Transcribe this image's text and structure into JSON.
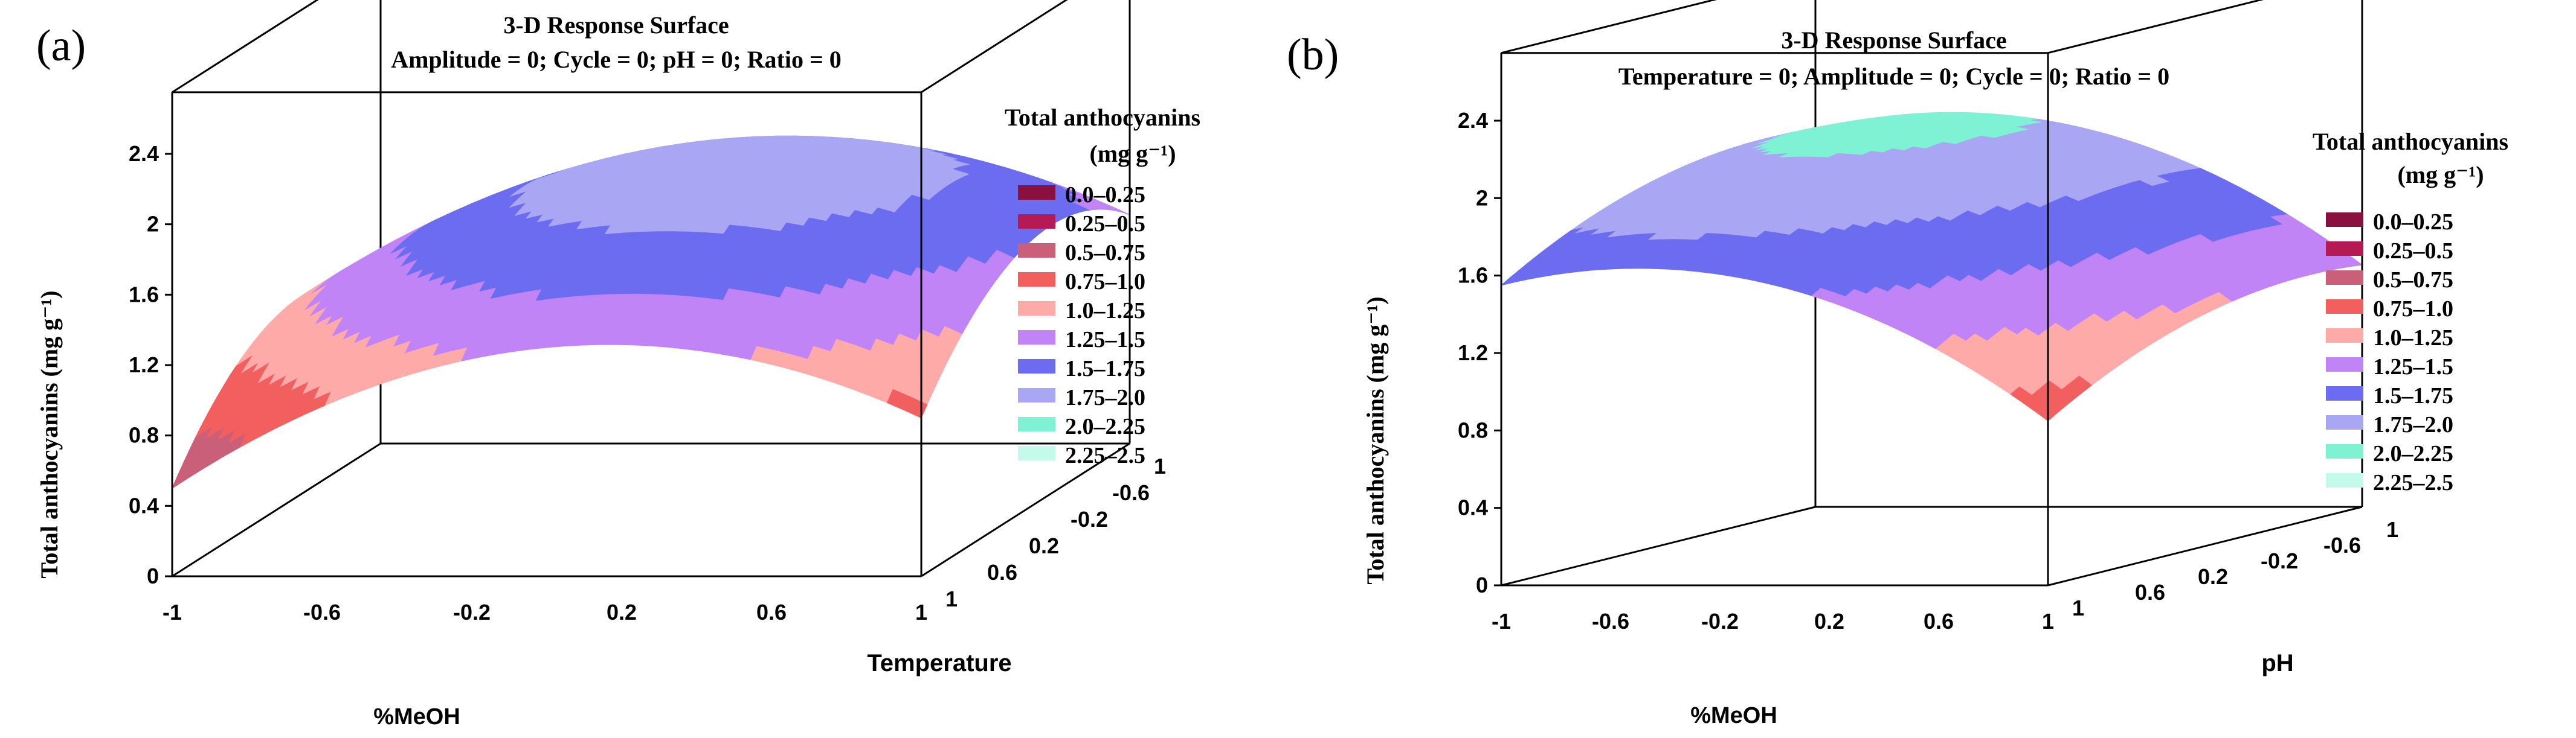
{
  "figure": {
    "panels": [
      {
        "panel_label": "(a)",
        "title": "3-D Response Surface",
        "subtitle": "Amplitude = 0; Cycle = 0; pH = 0; Ratio = 0",
        "legend_title_line1": "Total anthocyanins",
        "legend_title_line2": "(mg g⁻¹)"
      },
      {
        "panel_label": "(b)",
        "title": "3-D Response Surface",
        "subtitle": "Temperature = 0; Amplitude = 0; Cycle = 0; Ratio = 0",
        "legend_title_line1": "Total anthocyanins",
        "legend_title_line2": "(mg g⁻¹)"
      }
    ]
  },
  "chart_data": [
    {
      "type": "surface3d",
      "title": "3-D Response Surface",
      "subtitle": "Amplitude = 0; Cycle = 0; pH = 0; Ratio = 0",
      "xlabel": "%MeOH",
      "ylabel": "Temperature",
      "zlabel": "Total anthocyanins (mg g⁻¹)",
      "x_ticks": [
        "-1",
        "-0.6",
        "-0.2",
        "0.2",
        "0.6",
        "1"
      ],
      "y_ticks": [
        "1",
        "0.6",
        "0.2",
        "-0.2",
        "-0.6",
        "1"
      ],
      "z_ticks": [
        "0",
        "0.4",
        "0.8",
        "1.2",
        "1.6",
        "2",
        "2.4"
      ],
      "xlim": [
        -1,
        1
      ],
      "ylim": [
        -1,
        1
      ],
      "zlim": [
        0,
        2.4
      ],
      "legend": [
        {
          "label": "0.0–0.25",
          "color": "#8a1040"
        },
        {
          "label": "0.25–0.5",
          "color": "#b51a55"
        },
        {
          "label": "0.5–0.75",
          "color": "#c95f78"
        },
        {
          "label": "0.75–1.0",
          "color": "#f25f5f"
        },
        {
          "label": "1.0–1.25",
          "color": "#fdaaa8"
        },
        {
          "label": "1.25–1.5",
          "color": "#c184f7"
        },
        {
          "label": "1.5–1.75",
          "color": "#6c6cf0"
        },
        {
          "label": "1.75–2.0",
          "color": "#a9a6f3"
        },
        {
          "label": "2.0–2.25",
          "color": "#7ff2d4"
        },
        {
          "label": "2.25–2.5",
          "color": "#c4fae9"
        }
      ],
      "model": {
        "c": 1.9,
        "ax": 0.2,
        "bx": -0.6,
        "ay": -0.2,
        "by": -0.4
      }
    },
    {
      "type": "surface3d",
      "title": "3-D Response Surface",
      "subtitle": "Temperature = 0; Amplitude = 0; Cycle = 0; Ratio = 0",
      "xlabel": "%MeOH",
      "ylabel": "pH",
      "zlabel": "Total anthocyanins (mg g⁻¹)",
      "x_ticks": [
        "-1",
        "-0.6",
        "-0.2",
        "0.2",
        "0.6",
        "1"
      ],
      "y_ticks": [
        "1",
        "0.6",
        "0.2",
        "-0.2",
        "-0.6",
        "1"
      ],
      "z_ticks": [
        "0",
        "0.4",
        "0.8",
        "1.2",
        "1.6",
        "2",
        "2.4"
      ],
      "xlim": [
        -1,
        1
      ],
      "ylim": [
        -1,
        1
      ],
      "zlim": [
        0,
        2.4
      ],
      "legend": [
        {
          "label": "0.0–0.25",
          "color": "#8a1040"
        },
        {
          "label": "0.25–0.5",
          "color": "#b51a55"
        },
        {
          "label": "0.5–0.75",
          "color": "#c95f78"
        },
        {
          "label": "0.75–1.0",
          "color": "#f25f5f"
        },
        {
          "label": "1.0–1.25",
          "color": "#fdaaa8"
        },
        {
          "label": "1.25–1.5",
          "color": "#c184f7"
        },
        {
          "label": "1.5–1.75",
          "color": "#6c6cf0"
        },
        {
          "label": "1.75–2.0",
          "color": "#a9a6f3"
        },
        {
          "label": "2.0–2.25",
          "color": "#7ff2d4"
        },
        {
          "label": "2.25–2.5",
          "color": "#c4fae9"
        }
      ],
      "model": {
        "c": 1.9,
        "ax": -0.35,
        "bx": -0.35,
        "ay": -0.2,
        "by": -0.15
      }
    }
  ]
}
